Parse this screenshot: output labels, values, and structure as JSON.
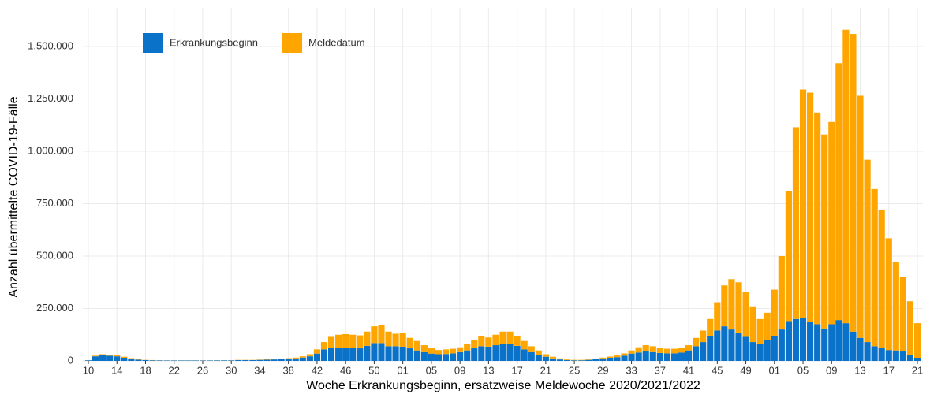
{
  "chart_data": {
    "type": "stacked_bar",
    "xlabel": "Woche Erkrankungsbeginn, ersatzweise Meldewoche 2020/2021/2022",
    "ylabel": "Anzahl übermittelte COVID-19-Fälle",
    "categories": [
      "10",
      null,
      null,
      null,
      "14",
      null,
      null,
      null,
      "18",
      null,
      null,
      null,
      "22",
      null,
      null,
      null,
      "26",
      null,
      null,
      null,
      "30",
      null,
      null,
      null,
      "34",
      null,
      null,
      null,
      "38",
      null,
      null,
      null,
      "42",
      null,
      null,
      null,
      "46",
      null,
      null,
      null,
      "50",
      null,
      null,
      null,
      "01",
      null,
      null,
      null,
      "05",
      null,
      null,
      null,
      "09",
      null,
      null,
      null,
      "13",
      null,
      null,
      null,
      "17",
      null,
      null,
      null,
      "21",
      null,
      null,
      null,
      "25",
      null,
      null,
      null,
      "29",
      null,
      null,
      null,
      "33",
      null,
      null,
      null,
      "37",
      null,
      null,
      null,
      "41",
      null,
      null,
      null,
      "45",
      null,
      null,
      null,
      "49",
      null,
      null,
      null,
      "01",
      null,
      null,
      null,
      "05",
      null,
      null,
      null,
      "09",
      null,
      null,
      null,
      "13",
      null,
      null,
      null,
      "17",
      null,
      null,
      null,
      "21"
    ],
    "series": [
      {
        "name": "Erkrankungsbeginn",
        "color": "#0a72c9",
        "values": [
          3000,
          22000,
          28000,
          25000,
          22000,
          15000,
          10000,
          6000,
          4000,
          3000,
          2500,
          2000,
          2000,
          2000,
          2000,
          2000,
          2000,
          2000,
          2500,
          2500,
          2500,
          4000,
          4000,
          4000,
          5000,
          6000,
          7000,
          8000,
          10000,
          12000,
          16000,
          22000,
          35000,
          55000,
          62000,
          62000,
          63000,
          62000,
          60000,
          72000,
          85000,
          85000,
          70000,
          70000,
          68000,
          60000,
          50000,
          42000,
          35000,
          32000,
          33000,
          36000,
          42000,
          50000,
          60000,
          70000,
          68000,
          75000,
          82000,
          82000,
          72000,
          55000,
          42000,
          30000,
          20000,
          12000,
          7000,
          4000,
          3000,
          3000,
          5000,
          8000,
          12000,
          15000,
          18000,
          25000,
          35000,
          40000,
          45000,
          42000,
          38000,
          36000,
          36000,
          40000,
          50000,
          70000,
          90000,
          120000,
          145000,
          165000,
          150000,
          135000,
          115000,
          90000,
          80000,
          100000,
          120000,
          150000,
          190000,
          200000,
          205000,
          185000,
          175000,
          155000,
          175000,
          195000,
          180000,
          140000,
          110000,
          90000,
          70000,
          62000,
          52000,
          50000,
          45000,
          30000,
          15000
        ]
      },
      {
        "name": "Meldedatum",
        "color": "#ffa500",
        "values": [
          500,
          3000,
          4000,
          5000,
          5000,
          5000,
          3000,
          2000,
          1000,
          1000,
          500,
          500,
          500,
          500,
          500,
          500,
          500,
          500,
          500,
          500,
          500,
          1000,
          1000,
          1000,
          1500,
          2000,
          2000,
          2000,
          3000,
          4000,
          6000,
          10000,
          20000,
          35000,
          53000,
          63000,
          65000,
          63000,
          62000,
          68000,
          80000,
          87000,
          70000,
          60000,
          64000,
          50000,
          45000,
          33000,
          25000,
          20000,
          22000,
          22000,
          23000,
          30000,
          40000,
          48000,
          44000,
          50000,
          58000,
          58000,
          48000,
          40000,
          28000,
          20000,
          12000,
          8000,
          5000,
          3000,
          2000,
          2000,
          2000,
          3000,
          4000,
          6000,
          8000,
          11000,
          15000,
          25000,
          30000,
          28000,
          24000,
          22000,
          22000,
          22000,
          25000,
          40000,
          55000,
          80000,
          135000,
          195000,
          240000,
          240000,
          215000,
          170000,
          120000,
          130000,
          220000,
          350000,
          620000,
          915000,
          1090000,
          1095000,
          1010000,
          925000,
          965000,
          1225000,
          1400000,
          1420000,
          1155000,
          870000,
          750000,
          658000,
          533000,
          420000,
          355000,
          255000,
          165000
        ]
      }
    ],
    "ylim": [
      0,
      1600000
    ],
    "yticks": [
      0,
      {
        "value": 250000,
        "label": "250.000"
      },
      {
        "value": 500000,
        "label": "500.000"
      },
      {
        "value": 750000,
        "label": "750.000"
      },
      {
        "value": 1000000,
        "label": "1.000.000"
      },
      {
        "value": 1250000,
        "label": "1.250.000"
      },
      {
        "value": 1500000,
        "label": "1.500.000"
      }
    ],
    "grid": true,
    "legend": "top-left"
  }
}
